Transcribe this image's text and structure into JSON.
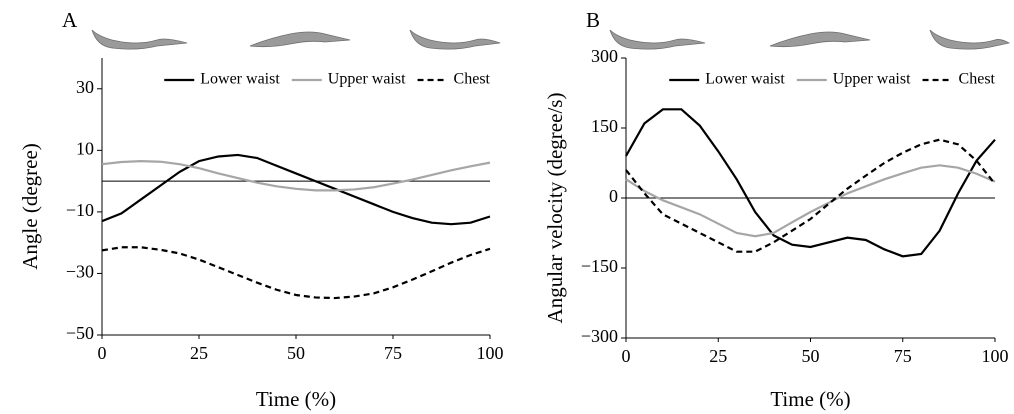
{
  "chart_data": [
    {
      "type": "line",
      "panel_label": "A",
      "ylabel": "Angle (degree)",
      "xlabel": "Time (%)",
      "x": [
        0,
        5,
        10,
        15,
        20,
        25,
        30,
        35,
        40,
        45,
        50,
        55,
        60,
        65,
        70,
        75,
        80,
        85,
        90,
        95,
        100
      ],
      "xlim": [
        0,
        100
      ],
      "xticks": [
        0,
        25,
        50,
        75,
        100
      ],
      "ylim": [
        -50,
        40
      ],
      "yticks": [
        {
          "value": -50,
          "label": "−50"
        },
        {
          "value": -30,
          "label": "−30"
        },
        {
          "value": -10,
          "label": "−10"
        },
        10,
        30
      ],
      "series": [
        {
          "name": "Lower waist",
          "color": "#000000",
          "line_style": "solid",
          "values": [
            -13,
            -10.5,
            -6,
            -1.5,
            3,
            6.5,
            8,
            8.5,
            7.5,
            5,
            2.5,
            0,
            -2.5,
            -5,
            -7.5,
            -10,
            -12,
            -13.5,
            -14,
            -13.5,
            -11.5
          ]
        },
        {
          "name": "Upper waist",
          "color": "#a6a6a6",
          "line_style": "solid",
          "values": [
            5.5,
            6.2,
            6.5,
            6.3,
            5.5,
            4.2,
            2.5,
            1,
            -0.5,
            -1.7,
            -2.5,
            -3,
            -3,
            -2.7,
            -2,
            -0.8,
            0.5,
            2,
            3.5,
            4.8,
            6
          ]
        },
        {
          "name": "Chest",
          "color": "#000000",
          "line_style": "dashed",
          "values": [
            -22.5,
            -21.5,
            -21.5,
            -22.3,
            -23.5,
            -25.5,
            -28,
            -30.5,
            -33,
            -35.3,
            -37,
            -37.8,
            -38,
            -37.5,
            -36.5,
            -34.5,
            -32,
            -29.3,
            -26.5,
            -24,
            -22
          ]
        }
      ]
    },
    {
      "type": "line",
      "panel_label": "B",
      "ylabel": "Angular velocity (degree/s)",
      "xlabel": "Time (%)",
      "x": [
        0,
        5,
        10,
        15,
        20,
        25,
        30,
        35,
        40,
        45,
        50,
        55,
        60,
        65,
        70,
        75,
        80,
        85,
        90,
        95,
        100
      ],
      "xlim": [
        0,
        100
      ],
      "xticks": [
        0,
        25,
        50,
        75,
        100
      ],
      "ylim": [
        -300,
        300
      ],
      "yticks": [
        {
          "value": -300,
          "label": "−300"
        },
        {
          "value": -150,
          "label": "−150"
        },
        0,
        150,
        300
      ],
      "series": [
        {
          "name": "Lower waist",
          "color": "#000000",
          "line_style": "solid",
          "values": [
            90,
            160,
            190,
            190,
            155,
            100,
            40,
            -30,
            -80,
            -100,
            -105,
            -95,
            -85,
            -90,
            -110,
            -125,
            -120,
            -70,
            10,
            80,
            125
          ]
        },
        {
          "name": "Upper waist",
          "color": "#a6a6a6",
          "line_style": "solid",
          "values": [
            40,
            15,
            -5,
            -20,
            -35,
            -55,
            -75,
            -82,
            -75,
            -52,
            -30,
            -10,
            10,
            25,
            40,
            53,
            65,
            70,
            65,
            52,
            35
          ]
        },
        {
          "name": "Chest",
          "color": "#000000",
          "line_style": "dashed",
          "values": [
            60,
            10,
            -35,
            -55,
            -75,
            -95,
            -115,
            -115,
            -95,
            -70,
            -45,
            -12,
            20,
            48,
            75,
            97,
            115,
            125,
            115,
            80,
            30
          ]
        }
      ]
    }
  ]
}
